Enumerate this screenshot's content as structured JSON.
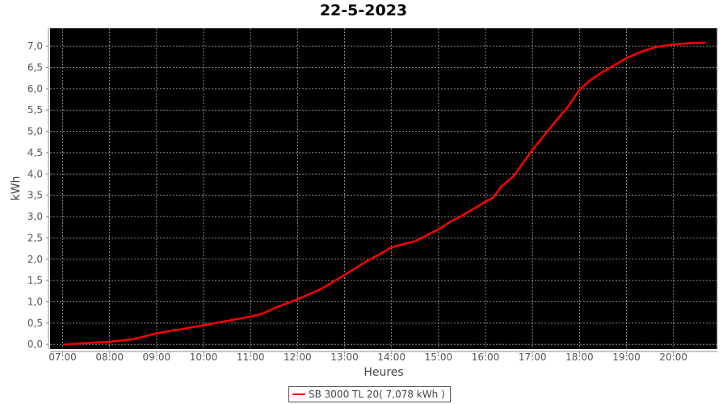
{
  "chart_data": {
    "type": "line",
    "title": "22-5-2023",
    "xlabel": "Heures",
    "ylabel": "kWh",
    "xlim": [
      "06:44",
      "20:56"
    ],
    "ylim": [
      -0.11,
      7.42
    ],
    "x_ticks": [
      "07:00",
      "08:00",
      "09:00",
      "10:00",
      "11:00",
      "12:00",
      "13:00",
      "14:00",
      "15:00",
      "16:00",
      "17:00",
      "18:00",
      "19:00",
      "20:00"
    ],
    "y_ticks": [
      "0,0",
      "0,5",
      "1,0",
      "1,5",
      "2,0",
      "2,5",
      "3,0",
      "3,5",
      "4,0",
      "4,5",
      "5,0",
      "5,5",
      "6,0",
      "6,5",
      "7,0"
    ],
    "grid": true,
    "background": "#000000",
    "legend_position": "bottom",
    "series": [
      {
        "name": "SB 3000 TL 20( 7,078 kWh )",
        "color": "#ff0000",
        "x": [
          "07:03",
          "07:30",
          "08:00",
          "08:30",
          "09:00",
          "09:30",
          "10:00",
          "10:30",
          "11:00",
          "11:15",
          "11:30",
          "12:00",
          "12:30",
          "13:00",
          "13:30",
          "13:45",
          "14:00",
          "14:30",
          "15:00",
          "15:15",
          "15:30",
          "16:00",
          "16:10",
          "16:20",
          "16:36",
          "17:00",
          "17:30",
          "17:45",
          "18:00",
          "18:15",
          "18:30",
          "19:00",
          "19:20",
          "19:40",
          "20:00",
          "20:20",
          "20:40"
        ],
        "y": [
          0.0,
          0.03,
          0.06,
          0.12,
          0.26,
          0.35,
          0.45,
          0.55,
          0.65,
          0.72,
          0.85,
          1.06,
          1.3,
          1.63,
          1.97,
          2.12,
          2.28,
          2.42,
          2.7,
          2.88,
          3.02,
          3.35,
          3.45,
          3.7,
          3.95,
          4.57,
          5.25,
          5.57,
          5.98,
          6.22,
          6.4,
          6.72,
          6.88,
          6.99,
          7.04,
          7.07,
          7.08
        ]
      }
    ]
  }
}
